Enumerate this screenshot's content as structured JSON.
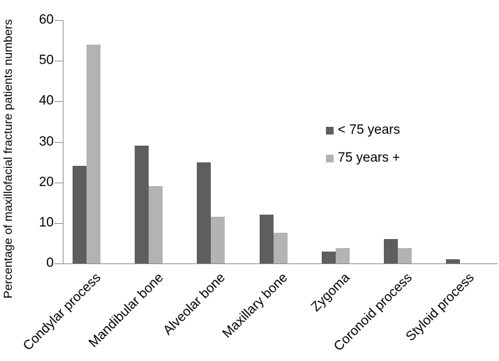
{
  "chart_data": {
    "type": "bar",
    "title": "",
    "categories": [
      "Condylar process",
      "Mandibular bone",
      "Alveolar bone",
      "Maxillary bone",
      "Zygoma",
      "Coronoid process",
      "Styloid process"
    ],
    "series": [
      {
        "name": "< 75 years",
        "color": "#5E5E5E",
        "values": [
          24,
          29,
          25,
          12,
          3,
          6,
          1
        ]
      },
      {
        "name": "75 years +",
        "color": "#B3B3B3",
        "values": [
          54,
          19,
          11.5,
          7.5,
          3.7,
          3.7,
          0
        ]
      }
    ],
    "xlabel": "",
    "ylabel": "Percentage of maxillofacial fracture patients numbers",
    "ylim": [
      0,
      60
    ],
    "yticks": [
      0,
      10,
      20,
      30,
      40,
      50,
      60
    ],
    "grid": false,
    "legend_position": "middle-right",
    "axis_color": "#8C8C8C",
    "text_color": "#000000",
    "background": "#FFFFFF"
  }
}
